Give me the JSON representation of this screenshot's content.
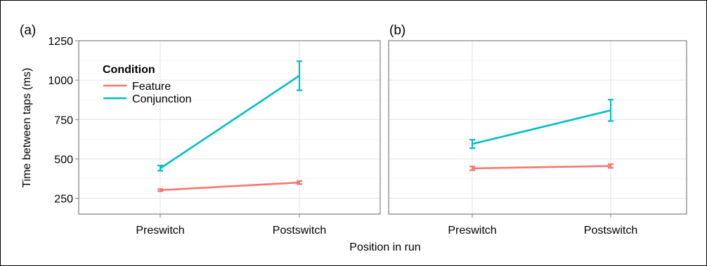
{
  "chart_data": [
    {
      "type": "line",
      "panel_label": "(a)",
      "categories": [
        "Preswitch",
        "Postswitch"
      ],
      "ylabel": "Time between taps (ms)",
      "xlabel": "Position in run",
      "ylim": [
        150,
        1250
      ],
      "yticks": [
        250,
        500,
        750,
        1000,
        1250
      ],
      "grid": true,
      "legend": {
        "title": "Condition",
        "placement": "top-left",
        "entries": [
          "Feature",
          "Conjunction"
        ]
      },
      "series": [
        {
          "name": "Feature",
          "color": "#F8766D",
          "values": [
            302,
            350
          ],
          "err": [
            [
              295,
              309
            ],
            [
              340,
              360
            ]
          ]
        },
        {
          "name": "Conjunction",
          "color": "#00BFC4",
          "values": [
            440,
            1028
          ],
          "err": [
            [
              425,
              458
            ],
            [
              935,
              1120
            ]
          ]
        }
      ]
    },
    {
      "type": "line",
      "panel_label": "(b)",
      "categories": [
        "Preswitch",
        "Postswitch"
      ],
      "ylim": [
        150,
        1250
      ],
      "grid": true,
      "series": [
        {
          "name": "Feature",
          "color": "#F8766D",
          "values": [
            440,
            455
          ],
          "err": [
            [
              428,
              452
            ],
            [
              443,
              467
            ]
          ]
        },
        {
          "name": "Conjunction",
          "color": "#00BFC4",
          "values": [
            595,
            808
          ],
          "err": [
            [
              568,
              622
            ],
            [
              740,
              876
            ]
          ]
        }
      ]
    }
  ]
}
